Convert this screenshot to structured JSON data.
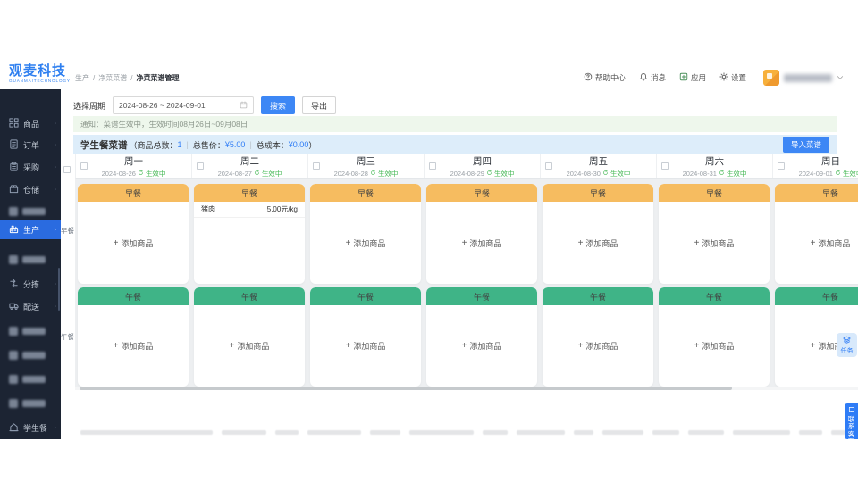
{
  "brand": {
    "title": "观麦科技",
    "subtitle": "GUANMAITECHNOLOGY",
    "color": "#2e7ff0"
  },
  "breadcrumb": {
    "items": [
      "生产",
      "净菜菜谱",
      "净菜菜谱管理"
    ]
  },
  "header": {
    "actions": [
      {
        "id": "help-center",
        "label": "帮助中心",
        "icon": "help-icon"
      },
      {
        "id": "messages",
        "label": "消息",
        "icon": "bell-icon"
      },
      {
        "id": "apps",
        "label": "应用",
        "icon": "apps-icon"
      },
      {
        "id": "settings",
        "label": "设置",
        "icon": "gear-icon"
      }
    ]
  },
  "sidebar": {
    "items": [
      {
        "id": "products",
        "label": "商品",
        "icon": "grid-icon"
      },
      {
        "id": "orders",
        "label": "订单",
        "icon": "order-icon"
      },
      {
        "id": "purchasing",
        "label": "采购",
        "icon": "purchase-icon"
      },
      {
        "id": "warehouse",
        "label": "仓储",
        "icon": "warehouse-icon"
      },
      {
        "id": "redacted-1",
        "redacted": true
      },
      {
        "id": "production",
        "label": "生产",
        "icon": "production-icon",
        "active": true
      },
      {
        "id": "redacted-2",
        "redacted": true
      },
      {
        "id": "sorting",
        "label": "分拣",
        "icon": "sorting-icon"
      },
      {
        "id": "delivery",
        "label": "配送",
        "icon": "delivery-icon"
      },
      {
        "id": "redacted-3",
        "redacted": true
      },
      {
        "id": "redacted-4",
        "redacted": true
      },
      {
        "id": "redacted-5",
        "redacted": true
      },
      {
        "id": "redacted-6",
        "redacted": true
      },
      {
        "id": "student-meal",
        "label": "学生餐",
        "icon": "student-meal-icon"
      }
    ]
  },
  "filters": {
    "period_label": "选择周期",
    "date_range": "2024-08-26 ~ 2024-09-01",
    "search_label": "搜索",
    "export_label": "导出"
  },
  "notice": {
    "text": "通知：菜谱生效中，生效时间08月26日~09月08日"
  },
  "summary": {
    "title": "学生餐菜谱",
    "paren_open": "（",
    "paren_close": "）",
    "divider": "|",
    "stats": [
      {
        "label": "商品总数：",
        "value": "1"
      },
      {
        "label": "总售价：",
        "value": "¥5.00"
      },
      {
        "label": "总成本：",
        "value": "¥0.00"
      }
    ],
    "import_label": "导入菜谱"
  },
  "board": {
    "gutter_labels": [
      "早餐",
      "午餐"
    ],
    "status_label": "生效中",
    "add_label": "添加商品",
    "days": [
      {
        "name": "周一",
        "date": "2024-08-26"
      },
      {
        "name": "周二",
        "date": "2024-08-27"
      },
      {
        "name": "周三",
        "date": "2024-08-28"
      },
      {
        "name": "周四",
        "date": "2024-08-29"
      },
      {
        "name": "周五",
        "date": "2024-08-30"
      },
      {
        "name": "周六",
        "date": "2024-08-31"
      },
      {
        "name": "周日",
        "date": "2024-09-01"
      }
    ],
    "meals": [
      {
        "name": "早餐",
        "header_color": "#f6bc60",
        "cells": [
          {
            "items": []
          },
          {
            "items": [
              {
                "name": "猪肉",
                "price": "5.00元/kg"
              }
            ]
          },
          {
            "items": []
          },
          {
            "items": []
          },
          {
            "items": []
          },
          {
            "items": []
          },
          {
            "items": []
          }
        ]
      },
      {
        "name": "午餐",
        "header_color": "#3fb487",
        "cells": [
          {
            "items": []
          },
          {
            "items": []
          },
          {
            "items": []
          },
          {
            "items": []
          },
          {
            "items": []
          },
          {
            "items": []
          },
          {
            "items": []
          }
        ]
      }
    ]
  },
  "floating": {
    "task_label": "任务",
    "contact_label": "联系客服"
  },
  "colors": {
    "accent_blue": "#2e7cf6",
    "sidebar_bg": "#1c2433",
    "sidebar_active": "#2a6be0",
    "breakfast_header": "#f6bc60",
    "lunch_header": "#3fb487",
    "notice_bg": "#eef7ec",
    "summary_bg": "#ddedfa",
    "status_green": "#45b854"
  }
}
